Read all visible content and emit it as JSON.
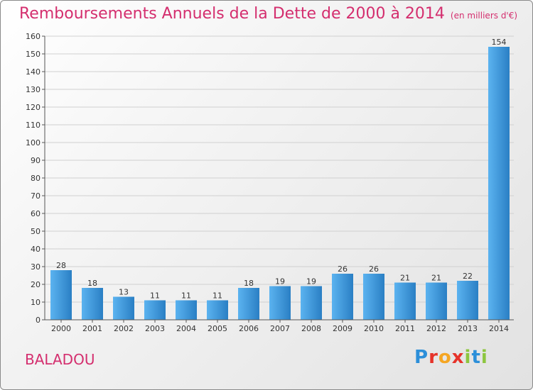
{
  "header": {
    "title": "Remboursements Annuels de la Dette de 2000 à 2014",
    "unit": "(en milliers d'€)"
  },
  "footer": {
    "commune": "BALADOU",
    "logo": [
      "P",
      "r",
      "o",
      "x",
      "i",
      "t",
      "i"
    ]
  },
  "colors": {
    "title": "#d42e6e",
    "bar_light": "#5bb3f0",
    "bar_dark": "#2a7fc4",
    "logo": [
      "#2c8fd9",
      "#e6332a",
      "#f5a623",
      "#e6332a",
      "#8dc63f",
      "#2c8fd9",
      "#8dc63f"
    ]
  },
  "chart_data": {
    "type": "bar",
    "title": "Remboursements Annuels de la Dette de 2000 à 2014",
    "ylabel": "(en milliers d'€)",
    "categories": [
      "2000",
      "2001",
      "2002",
      "2003",
      "2004",
      "2005",
      "2006",
      "2007",
      "2008",
      "2009",
      "2010",
      "2011",
      "2012",
      "2013",
      "2014"
    ],
    "values": [
      28,
      18,
      13,
      11,
      11,
      11,
      18,
      19,
      19,
      26,
      26,
      21,
      21,
      22,
      154
    ],
    "ylim": [
      0,
      160
    ],
    "yticks": [
      0,
      10,
      20,
      30,
      40,
      50,
      60,
      70,
      80,
      90,
      100,
      110,
      120,
      130,
      140,
      150,
      160
    ],
    "grid": true
  }
}
